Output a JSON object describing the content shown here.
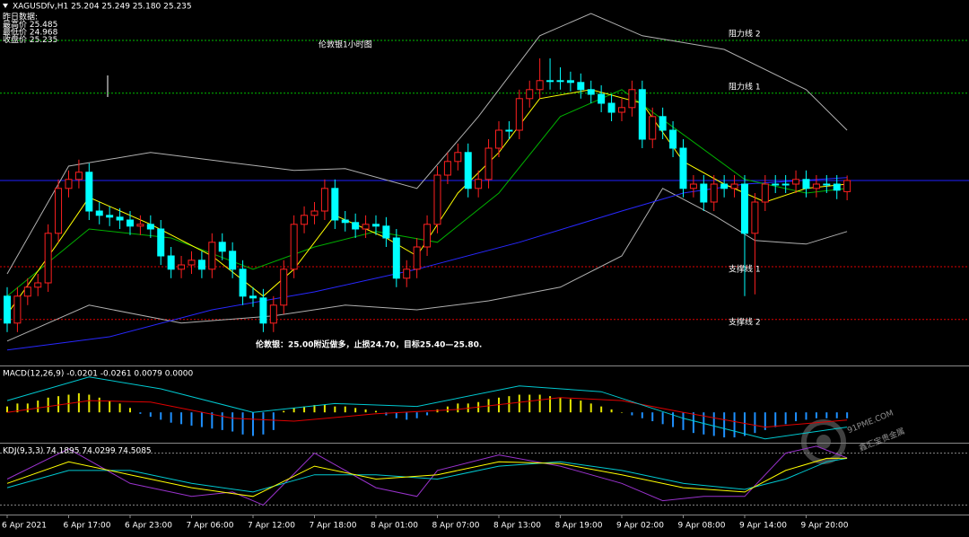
{
  "chart_data": [
    {
      "type": "candlestick",
      "title": "伦敦银1小时图",
      "header": "XAGUSDfv,H1  25.204 25.249 25.180 25.235",
      "info": [
        "昨日数据:",
        "最高价 25.485",
        "最低价 24.968",
        "收盘价 25.235"
      ],
      "annotation": "伦敦银：25.00附近做多，止损24.70，目标25.40—25.80.",
      "watermark": [
        "91PME.COM",
        "鑫汇宝贵金属"
      ],
      "xlim": [
        -0.7,
        93.9
      ],
      "ylim": [
        24.72,
        25.7375
      ],
      "xticks": [
        {
          "value": 0,
          "label": "6 Apr 2021"
        },
        {
          "value": 6,
          "label": "6 Apr 17:00"
        },
        {
          "value": 12,
          "label": "6 Apr 23:00"
        },
        {
          "value": 18,
          "label": "7 Apr 06:00"
        },
        {
          "value": 24,
          "label": "7 Apr 12:00"
        },
        {
          "value": 30,
          "label": "7 Apr 18:00"
        },
        {
          "value": 36,
          "label": "8 Apr 01:00"
        },
        {
          "value": 42,
          "label": "8 Apr 07:00"
        },
        {
          "value": 48,
          "label": "8 Apr 13:00"
        },
        {
          "value": 54,
          "label": "8 Apr 19:00"
        },
        {
          "value": 60,
          "label": "9 Apr 02:00"
        },
        {
          "value": 66,
          "label": "9 Apr 08:00"
        },
        {
          "value": 72,
          "label": "9 Apr 14:00"
        },
        {
          "value": 78,
          "label": "9 Apr 20:00"
        }
      ],
      "up_color": "#ff2020",
      "down_color": "#00ffff",
      "open": [
        24.913,
        24.838,
        24.913,
        24.938,
        24.95,
        25.088,
        25.213,
        25.238,
        25.258,
        25.15,
        25.138,
        25.133,
        25.125,
        25.108,
        25.113,
        25.1,
        25.025,
        24.988,
        25.0,
        25.013,
        24.988,
        25.063,
        25.038,
        24.988,
        24.913,
        24.908,
        24.838,
        24.888,
        24.988,
        25.113,
        25.138,
        25.15,
        25.213,
        25.125,
        25.118,
        25.1,
        25.113,
        25.108,
        25.075,
        24.963,
        24.988,
        25.05,
        25.113,
        25.25,
        25.288,
        25.313,
        25.213,
        25.238,
        25.325,
        25.375,
        25.375,
        25.463,
        25.488,
        25.513,
        25.513,
        25.513,
        25.508,
        25.488,
        25.475,
        25.45,
        25.425,
        25.438,
        25.488,
        25.35,
        25.413,
        25.375,
        25.325,
        25.213,
        25.225,
        25.175,
        25.225,
        25.213,
        25.225,
        25.088,
        25.175,
        25.225,
        25.225,
        25.225,
        25.238,
        25.213,
        25.225,
        25.225,
        25.204
      ],
      "high": [
        24.938,
        24.938,
        24.963,
        24.975,
        25.113,
        25.238,
        25.263,
        25.293,
        25.283,
        25.175,
        25.163,
        25.158,
        25.15,
        25.138,
        25.138,
        25.125,
        25.05,
        25.025,
        25.038,
        25.038,
        25.088,
        25.088,
        25.063,
        25.013,
        24.938,
        24.933,
        24.913,
        25.013,
        25.138,
        25.163,
        25.175,
        25.238,
        25.238,
        25.15,
        25.143,
        25.138,
        25.138,
        25.133,
        25.1,
        25.013,
        25.075,
        25.138,
        25.275,
        25.313,
        25.338,
        25.338,
        25.263,
        25.35,
        25.4,
        25.4,
        25.488,
        25.513,
        25.575,
        25.575,
        25.55,
        25.538,
        25.533,
        25.513,
        25.5,
        25.475,
        25.463,
        25.513,
        25.513,
        25.438,
        25.438,
        25.4,
        25.35,
        25.25,
        25.25,
        25.25,
        25.25,
        25.25,
        25.25,
        25.2,
        25.25,
        25.25,
        25.25,
        25.263,
        25.263,
        25.25,
        25.25,
        25.25,
        25.249
      ],
      "low": [
        24.813,
        24.813,
        24.888,
        24.913,
        24.925,
        25.063,
        25.188,
        25.213,
        25.125,
        25.113,
        25.108,
        25.1,
        25.083,
        25.083,
        25.075,
        25.0,
        24.963,
        24.963,
        24.975,
        24.963,
        24.963,
        25.013,
        24.963,
        24.888,
        24.883,
        24.813,
        24.813,
        24.863,
        24.963,
        25.088,
        25.113,
        25.125,
        25.1,
        25.093,
        25.075,
        25.075,
        25.083,
        25.05,
        24.938,
        24.938,
        24.963,
        25.025,
        25.088,
        25.225,
        25.263,
        25.188,
        25.188,
        25.213,
        25.3,
        25.35,
        25.35,
        25.438,
        25.463,
        25.488,
        25.488,
        25.483,
        25.463,
        25.45,
        25.425,
        25.4,
        25.4,
        25.413,
        25.325,
        25.325,
        25.35,
        25.3,
        25.188,
        25.188,
        25.15,
        25.15,
        25.188,
        25.188,
        24.913,
        24.918,
        25.15,
        25.2,
        25.2,
        25.2,
        25.188,
        25.188,
        25.2,
        25.183,
        25.18
      ],
      "close": [
        24.838,
        24.913,
        24.938,
        24.95,
        25.088,
        25.213,
        25.238,
        25.258,
        25.15,
        25.138,
        25.133,
        25.125,
        25.108,
        25.113,
        25.1,
        25.025,
        24.988,
        25.0,
        25.013,
        24.988,
        25.063,
        25.038,
        24.988,
        24.913,
        24.908,
        24.838,
        24.888,
        24.988,
        25.113,
        25.138,
        25.15,
        25.213,
        25.125,
        25.118,
        25.1,
        25.113,
        25.108,
        25.075,
        24.963,
        24.988,
        25.05,
        25.113,
        25.25,
        25.288,
        25.313,
        25.213,
        25.238,
        25.325,
        25.375,
        25.375,
        25.463,
        25.488,
        25.513,
        25.513,
        25.513,
        25.508,
        25.488,
        25.475,
        25.45,
        25.425,
        25.438,
        25.488,
        25.35,
        25.413,
        25.375,
        25.325,
        25.213,
        25.225,
        25.175,
        25.225,
        25.213,
        25.225,
        25.088,
        25.175,
        25.225,
        25.225,
        25.225,
        25.238,
        25.213,
        25.225,
        25.225,
        25.208,
        25.235
      ],
      "hlines": [
        {
          "label": "阻力线 2",
          "value": 25.625,
          "color": "#00c000",
          "dash": true
        },
        {
          "label": "阻力线 1",
          "value": 25.478,
          "color": "#00c000",
          "dash": true
        },
        {
          "label": "支撑线 1",
          "value": 24.995,
          "color": "#e00000",
          "dash": true
        },
        {
          "label": "支撑线 2",
          "value": 24.848,
          "color": "#e00000",
          "dash": true
        },
        {
          "value": 25.235,
          "color": "#2020ff",
          "dash": false
        }
      ],
      "overlays": [
        {
          "color": "#b0b0b0",
          "x": [
            0,
            6,
            14,
            21,
            28,
            33,
            40,
            46,
            52,
            57,
            62,
            70,
            78,
            82
          ],
          "values": [
            24.975,
            25.275,
            25.313,
            25.288,
            25.263,
            25.268,
            25.213,
            25.413,
            25.638,
            25.7,
            25.638,
            25.6,
            25.488,
            25.375
          ]
        },
        {
          "color": "#b0b0b0",
          "x": [
            0,
            8,
            17,
            26,
            33,
            40,
            47,
            54,
            60,
            64,
            69,
            73,
            78,
            82
          ],
          "values": [
            24.788,
            24.888,
            24.838,
            24.858,
            24.888,
            24.875,
            24.9,
            24.938,
            25.025,
            25.213,
            25.138,
            25.068,
            25.058,
            25.093
          ]
        },
        {
          "color": "#2828ff",
          "x": [
            0,
            10,
            20,
            30,
            40,
            50,
            60,
            66,
            72,
            82
          ],
          "values": [
            24.763,
            24.8,
            24.875,
            24.925,
            24.988,
            25.063,
            25.15,
            25.2,
            25.225,
            25.243
          ]
        },
        {
          "color": "#00b000",
          "x": [
            0,
            8,
            16,
            24,
            30,
            36,
            42,
            48,
            54,
            60,
            66,
            72,
            78,
            82
          ],
          "values": [
            24.913,
            25.1,
            25.075,
            24.988,
            25.05,
            25.093,
            25.063,
            25.2,
            25.413,
            25.488,
            25.363,
            25.238,
            25.2,
            25.213
          ]
        },
        {
          "color": "#ffff00",
          "x": [
            0,
            5,
            8,
            14,
            20,
            25,
            28,
            32,
            37,
            40,
            44,
            48,
            52,
            57,
            62,
            66,
            70,
            74,
            78,
            82
          ],
          "values": [
            24.863,
            25.063,
            25.188,
            25.113,
            25.025,
            24.913,
            24.988,
            25.138,
            25.075,
            25.025,
            25.2,
            25.313,
            25.463,
            25.488,
            25.45,
            25.288,
            25.225,
            25.175,
            25.213,
            25.225
          ]
        }
      ]
    },
    {
      "type": "macd",
      "label": "MACD(12,26,9) -0.0201 -0.0261 0.0079 0.0000",
      "ylim": [
        -0.1,
        0.15
      ],
      "histogram": {
        "colors": [
          "#e6e600",
          "#1e90ff"
        ],
        "values": [
          0.02,
          0.03,
          0.03,
          0.04,
          0.05,
          0.055,
          0.06,
          0.065,
          0.06,
          0.05,
          0.04,
          0.03,
          0.015,
          -0.005,
          -0.015,
          -0.025,
          -0.035,
          -0.04,
          -0.045,
          -0.05,
          -0.055,
          -0.06,
          -0.065,
          -0.075,
          -0.08,
          -0.075,
          -0.06,
          0.005,
          0.015,
          0.02,
          0.025,
          0.025,
          0.02,
          0.02,
          0.015,
          0.01,
          0.005,
          -0.01,
          -0.02,
          -0.025,
          -0.02,
          -0.01,
          0.01,
          0.02,
          0.03,
          0.03,
          0.035,
          0.045,
          0.05,
          0.055,
          0.06,
          0.06,
          0.06,
          0.055,
          0.05,
          0.045,
          0.04,
          0.03,
          0.02,
          0.01,
          0.0,
          -0.01,
          -0.02,
          -0.03,
          -0.04,
          -0.05,
          -0.06,
          -0.07,
          -0.075,
          -0.08,
          -0.085,
          -0.085,
          -0.08,
          -0.07,
          -0.06,
          -0.05,
          -0.04,
          -0.03,
          -0.025,
          -0.02,
          -0.02,
          -0.02,
          -0.0201
        ]
      },
      "lines": [
        {
          "color": "#e00000",
          "x": [
            0,
            8,
            14,
            22,
            28,
            36,
            44,
            54,
            60,
            66,
            74,
            82
          ],
          "values": [
            0.0,
            0.04,
            0.035,
            -0.02,
            -0.03,
            -0.005,
            0.01,
            0.05,
            0.04,
            0.0,
            -0.05,
            -0.0261
          ]
        },
        {
          "color": "#00c8d0",
          "x": [
            0,
            8,
            15,
            24,
            32,
            40,
            50,
            58,
            66,
            74,
            82
          ],
          "values": [
            0.04,
            0.12,
            0.08,
            0.0,
            0.03,
            0.02,
            0.09,
            0.07,
            -0.02,
            -0.09,
            -0.05
          ]
        }
      ]
    },
    {
      "type": "line",
      "label": "KDJ(9,3,3) 74.1895 74.0299 74.5085",
      "ylim": [
        10,
        90
      ],
      "levels": [
        20,
        80
      ],
      "series": [
        {
          "color": "#9932cc",
          "x": [
            0,
            6,
            12,
            18,
            22,
            25,
            30,
            36,
            40,
            42,
            48,
            54,
            60,
            64,
            68,
            72,
            76,
            79,
            82
          ],
          "values": [
            50,
            85,
            45,
            30,
            35,
            20,
            80,
            40,
            30,
            60,
            78,
            65,
            45,
            25,
            30,
            30,
            80,
            88,
            74.5085
          ]
        },
        {
          "color": "#00c8d0",
          "x": [
            0,
            6,
            12,
            18,
            24,
            30,
            36,
            42,
            48,
            54,
            60,
            66,
            72,
            76,
            80,
            82
          ],
          "values": [
            40,
            60,
            60,
            45,
            35,
            55,
            55,
            50,
            65,
            70,
            60,
            45,
            38,
            50,
            70,
            74.0299
          ]
        },
        {
          "color": "#ffff00",
          "x": [
            0,
            6,
            12,
            18,
            24,
            30,
            36,
            42,
            48,
            54,
            60,
            66,
            72,
            76,
            80,
            82
          ],
          "values": [
            45,
            70,
            55,
            40,
            30,
            65,
            50,
            55,
            70,
            68,
            55,
            40,
            35,
            60,
            74,
            74.1895
          ]
        }
      ]
    }
  ]
}
